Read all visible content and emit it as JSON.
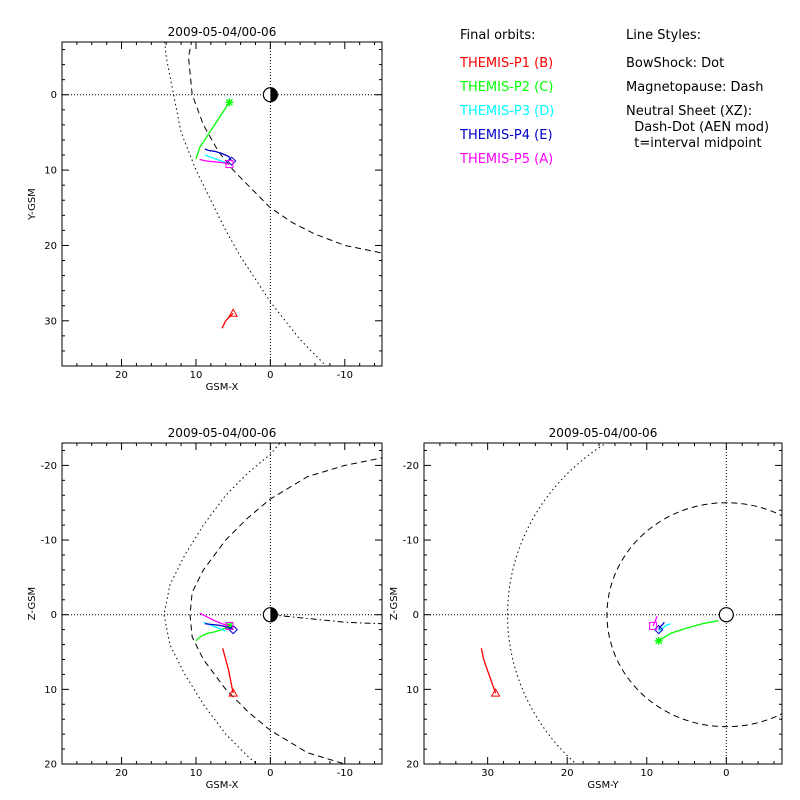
{
  "colors": {
    "P1": "#ff0000",
    "P2": "#00ff00",
    "P3": "#00ffff",
    "P4": "#0000cc",
    "P5": "#ff00ff",
    "axes": "#000000",
    "background": "#ffffff"
  },
  "legend": {
    "orbits_header": "Final orbits:",
    "probes": [
      {
        "label": "THEMIS-P1 (B)",
        "color": "#ff0000"
      },
      {
        "label": "THEMIS-P2 (C)",
        "color": "#00ff00"
      },
      {
        "label": "THEMIS-P3 (D)",
        "color": "#00ffff"
      },
      {
        "label": "THEMIS-P4 (E)",
        "color": "#0000cc"
      },
      {
        "label": "THEMIS-P5 (A)",
        "color": "#ff00ff"
      }
    ],
    "styles_header": "Line Styles:",
    "styles": [
      "BowShock: Dot",
      "Magnetopause: Dash",
      "Neutral Sheet (XZ):",
      "  Dash-Dot (AEN mod)",
      "  t=interval midpoint"
    ]
  },
  "chart_data": [
    {
      "type": "line",
      "id": "xy",
      "title": "2009-05-04/00-06",
      "xlabel": "GSM-X",
      "ylabel": "Y-GSM",
      "xlim": [
        28,
        -15
      ],
      "ylim": [
        -7,
        36
      ],
      "xticks": [
        20,
        10,
        0,
        -10
      ],
      "yticks": [
        0,
        10,
        20,
        30
      ],
      "earth": "half",
      "boundaries": [
        {
          "name": "bowshock",
          "style": "dot",
          "x": [
            14.5,
            14,
            13,
            12,
            10,
            8,
            6,
            4,
            2,
            0,
            -2,
            -4,
            -6,
            -8,
            -10
          ],
          "y": [
            -10,
            -5,
            0,
            5,
            10,
            14,
            18,
            21.5,
            24.5,
            27.5,
            30,
            32.5,
            34.5,
            36.5,
            38
          ]
        },
        {
          "name": "magnetopause",
          "style": "dash",
          "x": [
            10,
            11,
            10.5,
            9,
            7,
            5,
            3,
            0,
            -3,
            -6,
            -10,
            -15
          ],
          "y": [
            -10,
            -5,
            0,
            4,
            7.5,
            10,
            12,
            15,
            17,
            18.5,
            20,
            21
          ]
        }
      ],
      "orbits": [
        {
          "probe": "P1",
          "x": [
            5.0,
            5.5,
            6.0,
            6.5
          ],
          "y": [
            29.0,
            29.5,
            30.0,
            31.0
          ],
          "marker": "triangle"
        },
        {
          "probe": "P2",
          "x": [
            5.5,
            6.5,
            7.5,
            8.5,
            9.5,
            10.0
          ],
          "y": [
            1.0,
            2.5,
            4.0,
            5.5,
            7.0,
            8.5
          ],
          "marker": "star"
        },
        {
          "probe": "P3",
          "x": [
            6.0,
            6.5,
            7.2,
            8.0,
            8.8
          ],
          "y": [
            9.0,
            8.8,
            8.6,
            8.3,
            8.0
          ],
          "marker": "none"
        },
        {
          "probe": "P4",
          "x": [
            5.2,
            5.6,
            6.5,
            7.5,
            8.3,
            8.8
          ],
          "y": [
            8.8,
            8.2,
            7.8,
            7.5,
            7.4,
            7.2
          ],
          "marker": "diamond"
        },
        {
          "probe": "P5",
          "x": [
            5.5,
            6.5,
            7.5,
            8.5,
            9.5
          ],
          "y": [
            9.2,
            9.0,
            8.9,
            8.8,
            8.6
          ],
          "marker": "square"
        }
      ]
    },
    {
      "type": "line",
      "id": "xz",
      "title": "2009-05-04/00-06",
      "xlabel": "GSM-X",
      "ylabel": "Z-GSM",
      "xlim": [
        28,
        -15
      ],
      "ylim": [
        -23,
        20
      ],
      "xticks": [
        20,
        10,
        0,
        -10
      ],
      "yticks": [
        -20,
        -10,
        0,
        10,
        20
      ],
      "earth": "half",
      "boundaries": [
        {
          "name": "bowshock",
          "style": "dot",
          "x": [
            -3,
            0,
            3,
            6,
            9,
            11.5,
            13.5,
            14.3,
            13.5,
            11.5,
            9,
            6,
            3,
            0,
            -3
          ],
          "y": [
            25,
            21.5,
            19,
            16,
            12,
            8,
            4,
            0,
            -4,
            -8,
            -12,
            -16,
            -19,
            -21.5,
            -25
          ]
        },
        {
          "name": "magnetopause",
          "style": "dash",
          "x": [
            -15,
            -10,
            -5,
            0,
            3,
            6,
            9,
            10.5,
            10.8,
            10.5,
            9,
            6,
            3,
            0,
            -5,
            -10,
            -15
          ],
          "y": [
            21,
            20,
            18.5,
            15.5,
            13,
            10,
            6,
            3,
            0,
            -3,
            -6,
            -10,
            -13,
            -15.5,
            -18.5,
            -20,
            -21
          ]
        },
        {
          "name": "neutral_sheet",
          "style": "dashdot",
          "x": [
            0,
            -2,
            -4,
            -6,
            -8,
            -10,
            -12,
            -15
          ],
          "y": [
            0,
            0.2,
            0.4,
            0.6,
            0.8,
            1.0,
            1.1,
            1.2
          ]
        }
      ],
      "orbits": [
        {
          "probe": "P1",
          "x": [
            5.0,
            5.3,
            5.6,
            6.0,
            6.4
          ],
          "y": [
            10.5,
            9.0,
            7.5,
            6.0,
            4.5
          ],
          "marker": "triangle"
        },
        {
          "probe": "P2",
          "x": [
            5.5,
            6.5,
            7.5,
            8.5,
            9.5,
            10.0
          ],
          "y": [
            1.5,
            2.0,
            2.3,
            2.5,
            3.0,
            3.5
          ],
          "marker": "star"
        },
        {
          "probe": "P3",
          "x": [
            6.0,
            7.0,
            8.0,
            9.0
          ],
          "y": [
            2.2,
            1.8,
            1.4,
            1.0
          ],
          "marker": "none"
        },
        {
          "probe": "P4",
          "x": [
            5.0,
            6.0,
            7.0,
            8.0,
            8.8
          ],
          "y": [
            2.0,
            1.6,
            1.4,
            1.3,
            1.2
          ],
          "marker": "diamond"
        },
        {
          "probe": "P5",
          "x": [
            5.5,
            6.5,
            7.5,
            8.5,
            9.5
          ],
          "y": [
            1.5,
            1.2,
            0.8,
            0.3,
            -0.2
          ],
          "marker": "square"
        }
      ]
    },
    {
      "type": "line",
      "id": "yz",
      "title": "2009-05-04/00-06",
      "xlabel": "GSM-Y",
      "ylabel": "Z-GSM",
      "xlim": [
        38,
        -7
      ],
      "ylim": [
        -23,
        20
      ],
      "xticks": [
        30,
        20,
        10,
        0
      ],
      "yticks": [
        -20,
        -10,
        0,
        10,
        20
      ],
      "earth": "full",
      "boundaries": [
        {
          "name": "bowshock_circle",
          "style": "dot",
          "cx": 0,
          "cy": 0,
          "r": 27.5
        },
        {
          "name": "magnetopause_circle",
          "style": "dash",
          "cx": 0,
          "cy": 0,
          "r": 15
        }
      ],
      "orbits": [
        {
          "probe": "P1",
          "x": [
            29.0,
            29.5,
            30.0,
            30.5,
            30.8
          ],
          "y": [
            10.5,
            9.0,
            7.5,
            6.0,
            4.5
          ],
          "marker": "triangle"
        },
        {
          "probe": "P2",
          "x": [
            8.5,
            7.0,
            5.0,
            3.0,
            1.0
          ],
          "y": [
            3.5,
            2.5,
            1.8,
            1.2,
            0.8
          ],
          "marker": "star"
        },
        {
          "probe": "P3",
          "x": [
            8.5,
            8.0,
            7.5,
            7.0
          ],
          "y": [
            2.2,
            1.8,
            1.4,
            1.2
          ],
          "marker": "none"
        },
        {
          "probe": "P4",
          "x": [
            8.5,
            8.3,
            8.0,
            7.8
          ],
          "y": [
            2.0,
            1.6,
            1.3,
            1.0
          ],
          "marker": "diamond"
        },
        {
          "probe": "P5",
          "x": [
            9.2,
            9.0,
            8.8,
            8.7
          ],
          "y": [
            1.5,
            1.0,
            0.5,
            0.2
          ],
          "marker": "square"
        }
      ]
    }
  ]
}
